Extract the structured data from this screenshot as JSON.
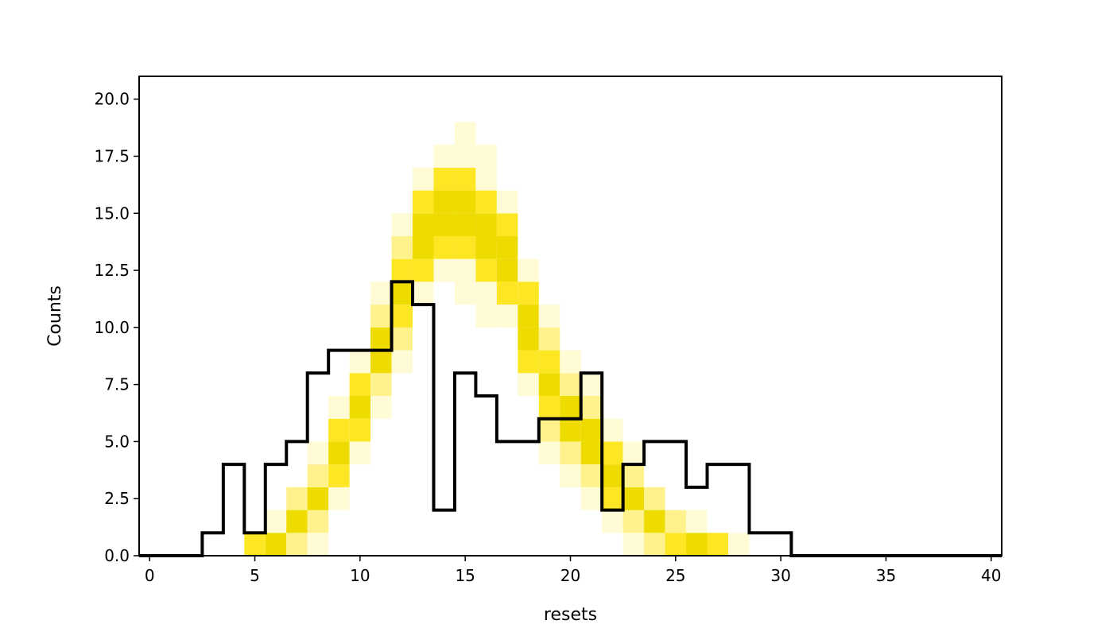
{
  "chart_data": {
    "type": "histogram",
    "title": "",
    "xlabel": "resets",
    "ylabel": "Counts",
    "xlim": [
      -0.5,
      40.5
    ],
    "ylim": [
      0,
      21
    ],
    "x_ticks": [
      0,
      5,
      10,
      15,
      20,
      25,
      30,
      35,
      40
    ],
    "x_tick_labels": [
      "0",
      "5",
      "10",
      "15",
      "20",
      "25",
      "30",
      "35",
      "40"
    ],
    "y_ticks": [
      0,
      2.5,
      5,
      7.5,
      10,
      12.5,
      15,
      17.5,
      20
    ],
    "y_tick_labels": [
      "0.0",
      "2.5",
      "5.0",
      "7.5",
      "10.0",
      "12.5",
      "15.0",
      "17.5",
      "20.0"
    ],
    "grid": false,
    "legend": "none",
    "series": [
      {
        "style": "step",
        "color": "#000000",
        "bins": [
          0,
          1,
          2,
          3,
          4,
          5,
          6,
          7,
          8,
          9,
          10,
          11,
          12,
          13,
          14,
          15,
          16,
          17,
          18,
          19,
          20,
          21,
          22,
          23,
          24,
          25,
          26,
          27,
          28,
          29,
          30,
          31,
          32,
          33,
          34,
          35,
          36,
          37,
          38,
          39,
          40
        ],
        "counts": [
          0,
          0,
          0,
          1,
          4,
          1,
          4,
          5,
          8,
          9,
          9,
          9,
          12,
          11,
          2,
          8,
          7,
          5,
          5,
          6,
          6,
          8,
          2,
          4,
          5,
          5,
          3,
          4,
          4,
          1,
          1,
          0,
          0,
          0,
          0,
          0,
          0,
          0,
          0,
          0,
          0
        ]
      }
    ],
    "uncertainty_band": {
      "color_light": "#fffbd5",
      "color_mid": "#fff28c",
      "color_strong": "#fde725",
      "color_center": "#eedc00",
      "center_line": [
        0,
        0,
        0,
        0,
        0,
        0.3,
        0.7,
        1.5,
        2.5,
        4.5,
        6.5,
        9,
        11.5,
        14,
        15,
        15,
        14,
        13,
        10,
        7.5,
        6,
        5,
        3.5,
        2.5,
        1.5,
        0.8,
        0.5,
        0.2,
        0,
        0,
        0,
        0,
        0,
        0,
        0,
        0,
        0,
        0,
        0,
        0,
        0
      ],
      "half_width": [
        0,
        0,
        0,
        0,
        0,
        0.4,
        0.9,
        1.3,
        1.6,
        1.9,
        2.1,
        2.4,
        2.6,
        2.8,
        3,
        3.1,
        3.1,
        3,
        2.8,
        2.6,
        2.3,
        2.1,
        1.9,
        1.6,
        1.3,
        1.1,
        0.9,
        0.7,
        0.4,
        0,
        0,
        0,
        0,
        0,
        0,
        0,
        0,
        0,
        0,
        0,
        0
      ]
    }
  }
}
